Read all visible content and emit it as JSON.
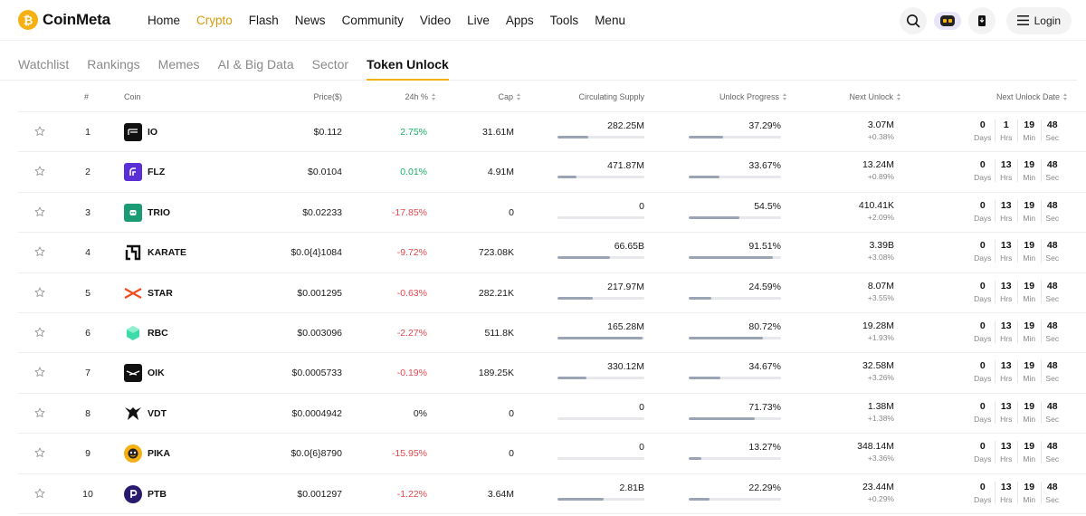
{
  "header": {
    "logo_text": "CoinMeta",
    "nav": [
      "Home",
      "Crypto",
      "Flash",
      "News",
      "Community",
      "Video",
      "Live",
      "Apps",
      "Tools",
      "Menu"
    ],
    "active_nav": "Crypto",
    "login_label": "Login"
  },
  "tabs": [
    "Watchlist",
    "Rankings",
    "Memes",
    "AI & Big Data",
    "Sector",
    "Token Unlock"
  ],
  "active_tab": "Token Unlock",
  "columns": {
    "rank": "#",
    "coin": "Coin",
    "price": "Price($)",
    "change": "24h %",
    "cap": "Cap",
    "supply": "Circulating Supply",
    "progress": "Unlock Progress",
    "next_unlock": "Next Unlock",
    "next_date": "Next Unlock Date"
  },
  "units": {
    "days": "Days",
    "hrs": "Hrs",
    "min": "Min",
    "sec": "Sec"
  },
  "colors": {
    "accent": "#f5b014",
    "up": "#16b364",
    "down": "#e5484d"
  },
  "rows": [
    {
      "rank": "1",
      "symbol": "IO",
      "icon": "io-logo",
      "price": "$0.112",
      "change": "2.75%",
      "dir": "up",
      "cap": "31.61M",
      "supply": "282.25M",
      "supply_fill": 0.35,
      "progress": "37.29%",
      "progress_fill": 0.3729,
      "next_amount": "3.07M",
      "next_pct": "+0.38%",
      "days": "0",
      "hrs": "1",
      "min": "19",
      "sec": "48"
    },
    {
      "rank": "2",
      "symbol": "FLZ",
      "icon": "flz-logo",
      "price": "$0.0104",
      "change": "0.01%",
      "dir": "up",
      "cap": "4.91M",
      "supply": "471.87M",
      "supply_fill": 0.22,
      "progress": "33.67%",
      "progress_fill": 0.3367,
      "next_amount": "13.24M",
      "next_pct": "+0.89%",
      "days": "0",
      "hrs": "13",
      "min": "19",
      "sec": "48"
    },
    {
      "rank": "3",
      "symbol": "TRIO",
      "icon": "trio-logo",
      "price": "$0.02233",
      "change": "-17.85%",
      "dir": "down",
      "cap": "0",
      "supply": "0",
      "supply_fill": 0,
      "progress": "54.5%",
      "progress_fill": 0.545,
      "next_amount": "410.41K",
      "next_pct": "+2.09%",
      "days": "0",
      "hrs": "13",
      "min": "19",
      "sec": "48"
    },
    {
      "rank": "4",
      "symbol": "KARATE",
      "icon": "karate-logo",
      "price": "$0.0{4}1084",
      "change": "-9.72%",
      "dir": "down",
      "cap": "723.08K",
      "supply": "66.65B",
      "supply_fill": 0.6,
      "progress": "91.51%",
      "progress_fill": 0.9151,
      "next_amount": "3.39B",
      "next_pct": "+3.08%",
      "days": "0",
      "hrs": "13",
      "min": "19",
      "sec": "48"
    },
    {
      "rank": "5",
      "symbol": "STAR",
      "icon": "star-logo",
      "price": "$0.001295",
      "change": "-0.63%",
      "dir": "down",
      "cap": "282.21K",
      "supply": "217.97M",
      "supply_fill": 0.41,
      "progress": "24.59%",
      "progress_fill": 0.2459,
      "next_amount": "8.07M",
      "next_pct": "+3.55%",
      "days": "0",
      "hrs": "13",
      "min": "19",
      "sec": "48"
    },
    {
      "rank": "6",
      "symbol": "RBC",
      "icon": "rbc-logo",
      "price": "$0.003096",
      "change": "-2.27%",
      "dir": "down",
      "cap": "511.8K",
      "supply": "165.28M",
      "supply_fill": 0.98,
      "progress": "80.72%",
      "progress_fill": 0.8072,
      "next_amount": "19.28M",
      "next_pct": "+1.93%",
      "days": "0",
      "hrs": "13",
      "min": "19",
      "sec": "48"
    },
    {
      "rank": "7",
      "symbol": "OIK",
      "icon": "oik-logo",
      "price": "$0.0005733",
      "change": "-0.19%",
      "dir": "down",
      "cap": "189.25K",
      "supply": "330.12M",
      "supply_fill": 0.33,
      "progress": "34.67%",
      "progress_fill": 0.3467,
      "next_amount": "32.58M",
      "next_pct": "+3.26%",
      "days": "0",
      "hrs": "13",
      "min": "19",
      "sec": "48"
    },
    {
      "rank": "8",
      "symbol": "VDT",
      "icon": "vdt-logo",
      "price": "$0.0004942",
      "change": "0%",
      "dir": "flat",
      "cap": "0",
      "supply": "0",
      "supply_fill": 0,
      "progress": "71.73%",
      "progress_fill": 0.7173,
      "next_amount": "1.38M",
      "next_pct": "+1.38%",
      "days": "0",
      "hrs": "13",
      "min": "19",
      "sec": "48"
    },
    {
      "rank": "9",
      "symbol": "PIKA",
      "icon": "pika-logo",
      "price": "$0.0{6}8790",
      "change": "-15.95%",
      "dir": "down",
      "cap": "0",
      "supply": "0",
      "supply_fill": 0,
      "progress": "13.27%",
      "progress_fill": 0.1327,
      "next_amount": "348.14M",
      "next_pct": "+3.36%",
      "days": "0",
      "hrs": "13",
      "min": "19",
      "sec": "48"
    },
    {
      "rank": "10",
      "symbol": "PTB",
      "icon": "ptb-logo",
      "price": "$0.001297",
      "change": "-1.22%",
      "dir": "down",
      "cap": "3.64M",
      "supply": "2.81B",
      "supply_fill": 0.53,
      "progress": "22.29%",
      "progress_fill": 0.2229,
      "next_amount": "23.44M",
      "next_pct": "+0.29%",
      "days": "0",
      "hrs": "13",
      "min": "19",
      "sec": "48"
    }
  ]
}
